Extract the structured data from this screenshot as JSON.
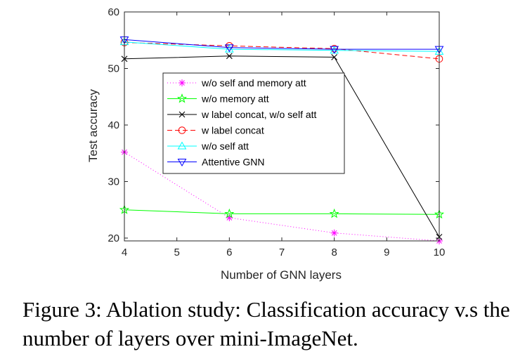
{
  "chart_data": {
    "type": "line",
    "xlabel": "Number of GNN layers",
    "ylabel": "Test accuracy",
    "xlim": [
      4,
      10
    ],
    "ylim": [
      19.5,
      60
    ],
    "xticks": [
      4,
      5,
      6,
      7,
      8,
      9,
      10
    ],
    "yticks": [
      20,
      30,
      40,
      50,
      60
    ],
    "grid": false,
    "legend_position": "center-left",
    "x": [
      4,
      6,
      8,
      10
    ],
    "series": [
      {
        "name": "w/o self and memory att",
        "values": [
          35.2,
          23.6,
          20.9,
          19.5
        ],
        "color": "#ff00ff",
        "dash": "dotted",
        "marker": "asterisk"
      },
      {
        "name": "w/o memory att",
        "values": [
          25.0,
          24.3,
          24.3,
          24.2
        ],
        "color": "#00ff00",
        "dash": "solid",
        "marker": "star"
      },
      {
        "name": "w label concat, w/o self att",
        "values": [
          51.7,
          52.2,
          52.0,
          20.2
        ],
        "color": "#000000",
        "dash": "solid",
        "marker": "x"
      },
      {
        "name": "w label concat",
        "values": [
          54.6,
          54.0,
          53.5,
          51.7
        ],
        "color": "#ff0000",
        "dash": "dashed",
        "marker": "circle"
      },
      {
        "name": "w/o self att",
        "values": [
          54.7,
          53.4,
          53.2,
          53.0
        ],
        "color": "#00ffff",
        "dash": "solid",
        "marker": "triangle-up"
      },
      {
        "name": "Attentive GNN",
        "values": [
          55.1,
          53.7,
          53.4,
          53.4
        ],
        "color": "#0000ff",
        "dash": "solid",
        "marker": "triangle-down"
      }
    ]
  },
  "caption": {
    "text": "Figure 3: Ablation study: Classification accuracy v.s the number of layers over mini-ImageNet."
  }
}
